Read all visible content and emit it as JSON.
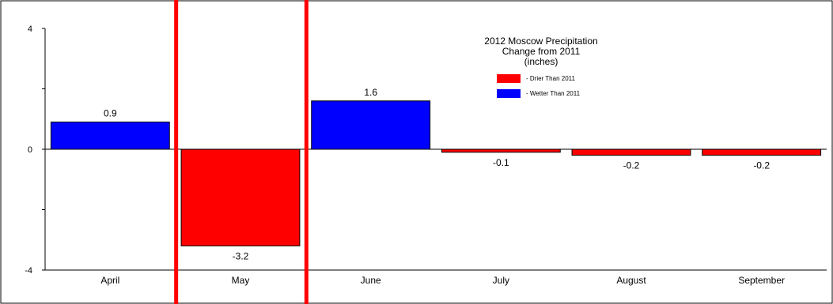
{
  "chart_data": {
    "type": "bar",
    "title_lines": [
      "2012 Moscow Precipitation",
      "Change from 2011",
      "(inches)"
    ],
    "categories": [
      "April",
      "May",
      "June",
      "July",
      "August",
      "September"
    ],
    "values": [
      0.9,
      -3.2,
      1.6,
      -0.1,
      -0.2,
      -0.2
    ],
    "data_labels": [
      "0.9",
      "-3.2",
      "1.6",
      "-0.1",
      "-0.2",
      "-0.2"
    ],
    "ylim": [
      -4,
      4
    ],
    "yticks": [
      {
        "value": 4,
        "label": "4"
      },
      {
        "value": 0,
        "label": "0"
      },
      {
        "value": -4,
        "label": "-4"
      }
    ],
    "grid": false,
    "legend_position": "top-right",
    "legend": [
      {
        "label": "- Drier Than 2011",
        "color": "#ff0000"
      },
      {
        "label": "- Wetter Than 2011",
        "color": "#0000ff"
      }
    ],
    "colors": {
      "positive": "#0000ff",
      "negative": "#ff0000",
      "marker": "#ff0000"
    },
    "marker_lines_between": [
      [
        0,
        1
      ],
      [
        1,
        2
      ]
    ]
  }
}
